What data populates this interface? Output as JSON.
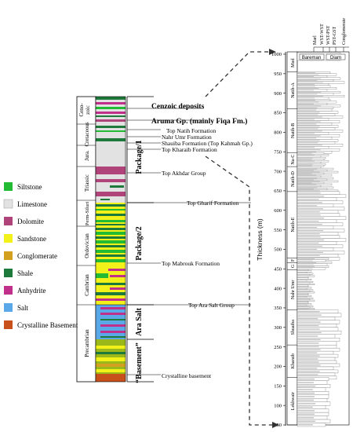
{
  "legend": [
    {
      "label": "Siltstone",
      "color": "#22bb33"
    },
    {
      "label": "Limestone",
      "color": "#e2e2e2"
    },
    {
      "label": "Dolomite",
      "color": "#b0447a"
    },
    {
      "label": "Sandstone",
      "color": "#f2f21a"
    },
    {
      "label": "Conglomerate",
      "color": "#d4a020"
    },
    {
      "label": "Shale",
      "color": "#1e7a3a"
    },
    {
      "label": "Anhydrite",
      "color": "#c0308a"
    },
    {
      "label": "Salt",
      "color": "#5aa8e8"
    },
    {
      "label": "Crystalline Basement",
      "color": "#c8501a"
    }
  ],
  "periods": [
    "Ceno-",
    "zoic",
    "Cretaceous",
    "Jura.",
    "Triassic",
    "Perm-Siluri",
    "Ordovician",
    "Cambrian",
    "Precambrian"
  ],
  "packages": [
    "Package/1",
    "Package/2",
    "Ara Salt",
    "“Basement”"
  ],
  "packages_list": [
    "Package/1",
    "Package/2",
    "Ara Salt",
    "“Basement”"
  ],
  "tops": [
    {
      "label": "Cenzoic deposits",
      "bold": true
    },
    {
      "label": "Aruma Gp. (mainly Fiqa Fm.)",
      "bold": true
    },
    {
      "label": "Top Natih Formation",
      "bold": false
    },
    {
      "label": "Nahr Umr Formation",
      "bold": false
    },
    {
      "label": "Shauiba Formation (Top Kahmah Gp.)",
      "bold": false
    },
    {
      "label": "Top Kharaib Formation",
      "bold": false
    },
    {
      "label": "Top Akhdar Group",
      "bold": false
    },
    {
      "label": "Top Gharif Formation",
      "bold": false
    },
    {
      "label": "Top Mabrouk Formation",
      "bold": false
    },
    {
      "label": "Top Ara Salt Group",
      "bold": false
    },
    {
      "label": "Crystalline basement",
      "bold": false
    }
  ],
  "log": {
    "ylabel": "Thickness (m)",
    "ticks": [
      "1000",
      "950",
      "900",
      "850",
      "800",
      "750",
      "700",
      "650",
      "600",
      "550",
      "500",
      "450",
      "400",
      "350",
      "300",
      "250",
      "200",
      "150",
      "100",
      "50"
    ],
    "texture_header": [
      "Marl",
      "WST-WST",
      "WST-PST",
      "PST-GST",
      "Conglomerate"
    ],
    "header_boxes": [
      "Bareman",
      "Diam"
    ],
    "mud": "Mud",
    "units": [
      "Natih-A",
      "Natih-B",
      "Na-C",
      "Natih-D",
      "Natih-E",
      "F",
      "G",
      "Nahr Umr",
      "Shuaiba",
      "Kharaib",
      "Lekhwair"
    ]
  }
}
